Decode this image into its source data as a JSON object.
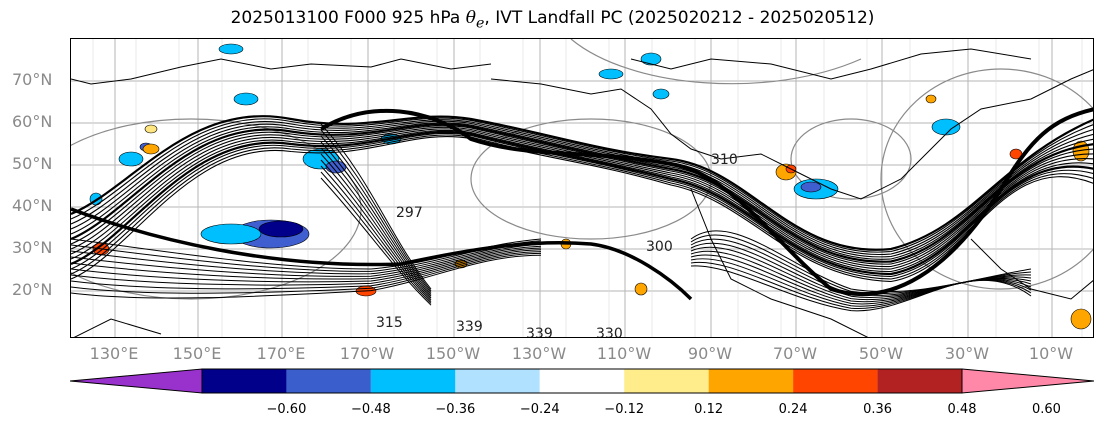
{
  "title": {
    "prefix": "2025013100 F000 925 hPa ",
    "symbol": "θ",
    "subscript": "e",
    "suffix": ", IVT Landfall PC (2025020212 - 2025020512)"
  },
  "map": {
    "lat_labels": [
      "70°N",
      "60°N",
      "50°N",
      "40°N",
      "30°N",
      "20°N"
    ],
    "lon_labels": [
      "130°E",
      "150°E",
      "170°E",
      "170°W",
      "150°W",
      "130°W",
      "110°W",
      "90°W",
      "70°W",
      "50°W",
      "30°W",
      "10°W"
    ],
    "contour_labels": [
      "297",
      "300",
      "339",
      "339",
      "330",
      "310",
      "315"
    ],
    "positive_colors": [
      "#ffe680",
      "#ffa500",
      "#ff4500",
      "#b22222"
    ],
    "negative_colors": [
      "#00bfff",
      "#3f5fd0",
      "#00008b"
    ]
  },
  "colorbar": {
    "colors": [
      "#9932cc",
      "#00008b",
      "#3a5fcd",
      "#00bfff",
      "#b0e2ff",
      "#ffffff",
      "#ffec8b",
      "#ffa500",
      "#ff4500",
      "#b22222",
      "#ff88a8"
    ],
    "tick_labels": [
      "−0.60",
      "−0.48",
      "−0.36",
      "−0.24",
      "−0.12",
      "0.12",
      "0.24",
      "0.36",
      "0.48",
      "0.60"
    ]
  }
}
